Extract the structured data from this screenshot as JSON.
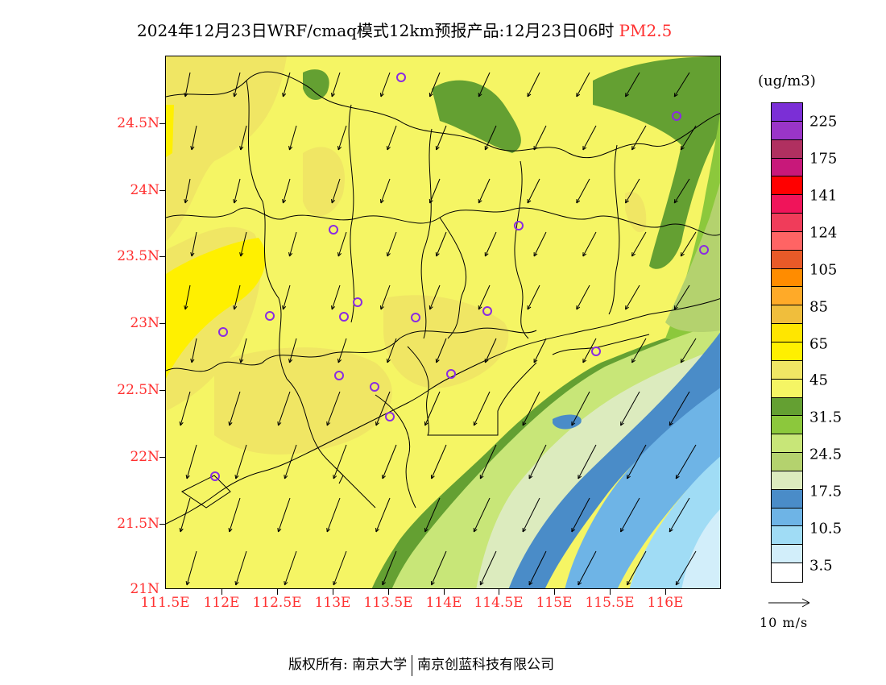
{
  "header": {
    "title": "2024年12月23日WRF/cmaq模式12km预报产品:12月23日06时",
    "variable": "PM2.5"
  },
  "axes": {
    "lat_labels": [
      "24.5N",
      "24N",
      "23.5N",
      "23N",
      "22.5N",
      "22N",
      "21.5N",
      "21N"
    ],
    "lon_labels": [
      "111.5E",
      "112E",
      "112.5E",
      "113E",
      "113.5E",
      "114E",
      "114.5E",
      "115E",
      "115.5E",
      "116E"
    ]
  },
  "legend": {
    "unit": "(ug/m3)",
    "labels": [
      "225",
      "175",
      "141",
      "124",
      "105",
      "85",
      "65",
      "45",
      "31.5",
      "24.5",
      "17.5",
      "10.5",
      "3.5"
    ],
    "colors": [
      "#7b2fd6",
      "#9a35c8",
      "#b03060",
      "#c8187a",
      "#ff0000",
      "#f0145a",
      "#f03c5a",
      "#ff6464",
      "#e85a28",
      "#ff8c00",
      "#ffaa28",
      "#f0be3c",
      "#ffe600",
      "#fff000",
      "#f0e664",
      "#f5f564",
      "#64a032",
      "#8cc83c",
      "#c8e678",
      "#b4d26e",
      "#dcebbe",
      "#4a8cc8",
      "#6eb4e6",
      "#a0dcf5",
      "#d2eefa",
      "#ffffff"
    ]
  },
  "wind_reference": {
    "label": "10 m/s"
  },
  "footer": {
    "owner_label": "版权所有:",
    "org1": "南京大学",
    "org2": "南京创蓝科技有限公司"
  }
}
